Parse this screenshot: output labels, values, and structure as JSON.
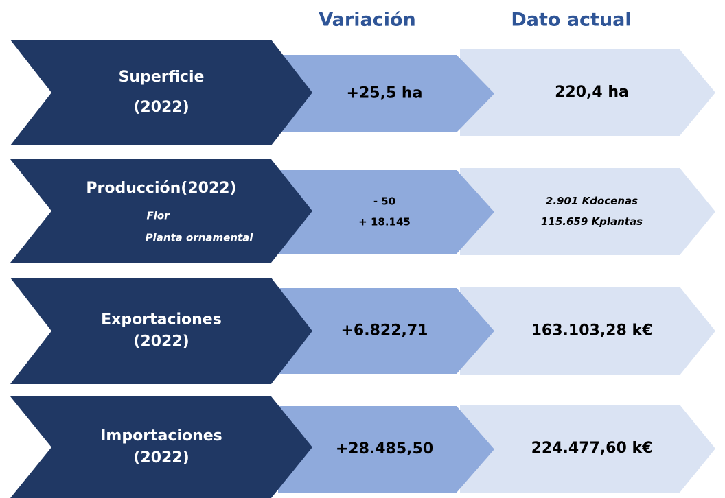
{
  "headers": [
    "Variación",
    "Dato actual"
  ],
  "rows": [
    {
      "title": [
        "Superficie",
        "(2022)"
      ],
      "variation": [
        "+25,5 ha"
      ],
      "current": [
        "220,4 ha"
      ]
    },
    {
      "title": [
        "Producción(2022)"
      ],
      "sublabels": [
        "Flor",
        "Planta ornamental"
      ],
      "variation": [
        "- 50",
        "+ 18.145"
      ],
      "current": [
        "2.901 Kdocenas",
        "115.659 Kplantas"
      ]
    },
    {
      "title": [
        "Exportaciones",
        "(2022)"
      ],
      "variation": [
        "+6.822,71"
      ],
      "current": [
        "163.103,28 k€"
      ]
    },
    {
      "title": [
        "Importaciones",
        "(2022)"
      ],
      "variation": [
        "+28.485,50"
      ],
      "current": [
        "224.477,60 k€"
      ]
    }
  ]
}
